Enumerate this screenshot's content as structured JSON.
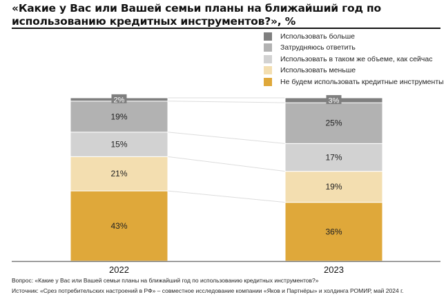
{
  "title": "«Какие у Вас или Вашей семьи планы на ближайший год по использованию кредитных инструментов?», %",
  "chart_data": {
    "type": "bar",
    "stacked": true,
    "title": "«Какие у Вас или Вашей семьи планы на ближайший год по использованию кредитных инструментов?», %",
    "xlabel": "",
    "ylabel": "",
    "ylim": [
      0,
      100
    ],
    "grid": false,
    "legend_position": "top-right",
    "categories": [
      "2022",
      "2023"
    ],
    "series": [
      {
        "name": "Не будем использовать кредитные инструменты",
        "color": "#dfa83a",
        "values": [
          43,
          36
        ],
        "labels": [
          "43%",
          "36%"
        ]
      },
      {
        "name": "Использовать меньше",
        "color": "#f3deb0",
        "values": [
          21,
          19
        ],
        "labels": [
          "21%",
          "19%"
        ]
      },
      {
        "name": "Использовать в таком же объеме, как сейчас",
        "color": "#d2d2d2",
        "values": [
          15,
          17
        ],
        "labels": [
          "15%",
          "17%"
        ]
      },
      {
        "name": "Затрудняюсь ответить",
        "color": "#b2b2b2",
        "values": [
          19,
          25
        ],
        "labels": [
          "19%",
          "25%"
        ]
      },
      {
        "name": "Использовать больше",
        "color": "#7f7f7f",
        "values": [
          2,
          3
        ],
        "labels": [
          "2%",
          "3%"
        ]
      }
    ],
    "legend_order": [
      "Использовать больше",
      "Затрудняюсь ответить",
      "Использовать в таком же объеме, как сейчас",
      "Использовать меньше",
      "Не будем использовать кредитные инструменты"
    ]
  },
  "legend": [
    {
      "label": "Использовать больше",
      "color": "#7f7f7f"
    },
    {
      "label": "Затрудняюсь ответить",
      "color": "#b2b2b2"
    },
    {
      "label": "Использовать в таком же объеме, как сейчас",
      "color": "#d2d2d2"
    },
    {
      "label": "Использовать меньше",
      "color": "#f3deb0"
    },
    {
      "label": "Не будем использовать кредитные инструменты",
      "color": "#dfa83a"
    }
  ],
  "footnotes": {
    "question": "Вопрос: «Какие у Вас или Вашей семьи планы на ближайший год по использованию кредитных инструментов?»",
    "source": "Источник: «Срез потребительских настроений в РФ» – совместное исследование компании «Яков и Партнёры» и холдинга РОМИР, май 2024 г."
  }
}
